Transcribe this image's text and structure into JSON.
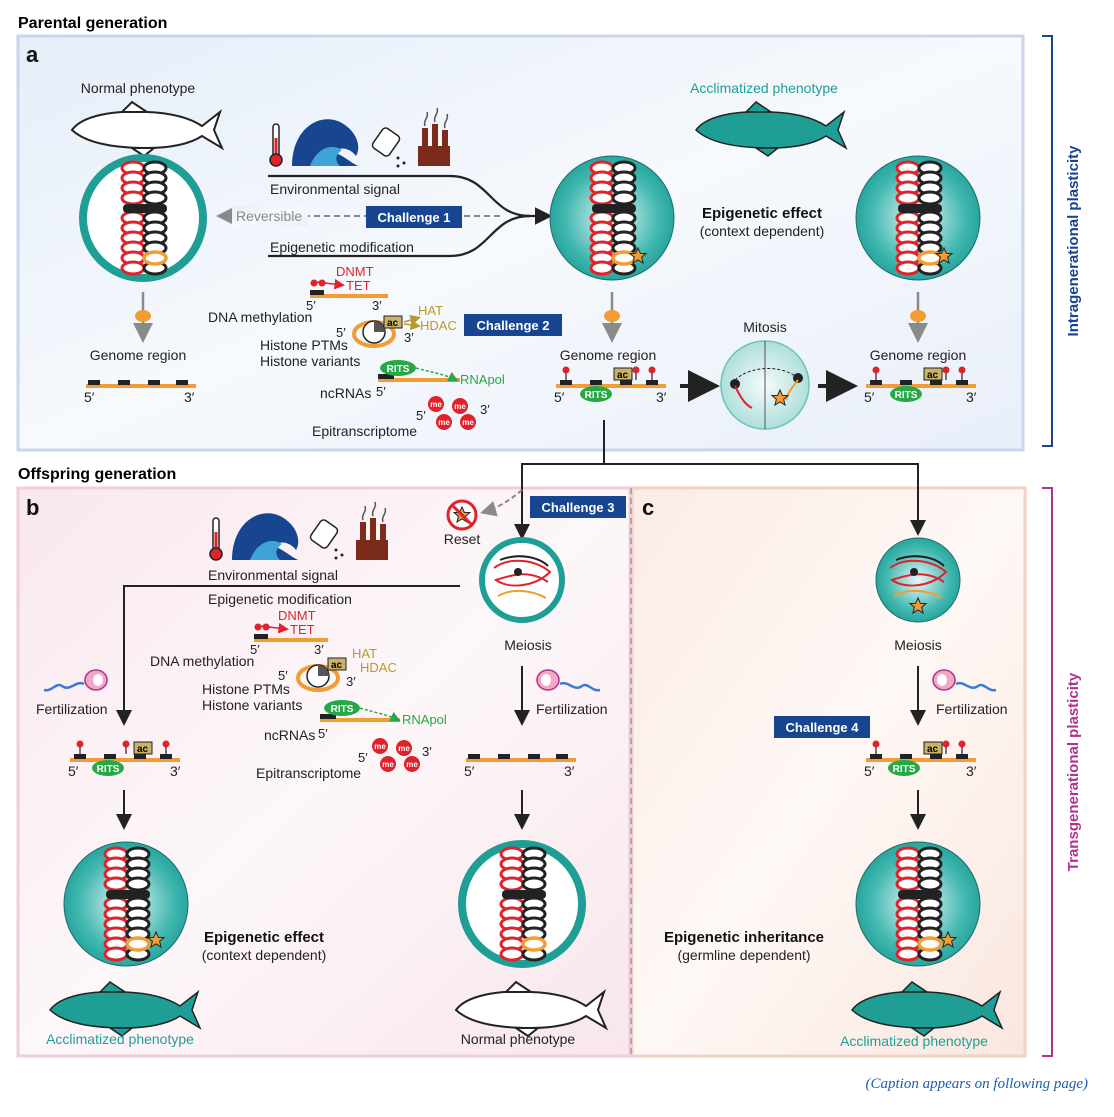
{
  "headings": {
    "parental": "Parental generation",
    "offspring": "Offspring generation"
  },
  "panels": {
    "a": "a",
    "b": "b",
    "c": "c"
  },
  "side_labels": {
    "intra": "Intragenerational plasticity",
    "trans": "Transgenerational plasticity"
  },
  "phenotypes": {
    "normal": "Normal phenotype",
    "acclimatized": "Acclimatized phenotype"
  },
  "labels": {
    "environmental_signal": "Environmental signal",
    "epigenetic_modification": "Epigenetic modification",
    "reversible": "Reversible",
    "genome_region": "Genome region",
    "mitosis": "Mitosis",
    "meiosis": "Meiosis",
    "fertilization": "Fertilization",
    "reset": "Reset",
    "dna_methylation": "DNA methylation",
    "histone_ptms": "Histone PTMs",
    "histone_variants": "Histone variants",
    "ncrnas": "ncRNAs",
    "epitranscriptome": "Epitranscriptome",
    "dnmt": "DNMT",
    "tet": "TET",
    "hat": "HAT",
    "hdac": "HDAC",
    "rnapol": "RNApol",
    "rits": "RITS",
    "ac": "ac",
    "me": "me",
    "five_prime": "5′",
    "three_prime": "3′"
  },
  "effects": {
    "epigenetic_effect": "Epigenetic effect",
    "context_dependent": "(context dependent)",
    "epigenetic_inheritance": "Epigenetic inheritance",
    "germline_dependent": "(germline dependent)"
  },
  "challenges": {
    "c1": "Challenge 1",
    "c2": "Challenge 2",
    "c3": "Challenge 3",
    "c4": "Challenge 4"
  },
  "caption_note": "(Caption appears on following page)",
  "colors": {
    "teal": "#1f9e96",
    "navy": "#17458f",
    "red": "#e0232b",
    "orange": "#f39c34",
    "green": "#27a847",
    "olive": "#b59b2e",
    "magenta": "#b0338e"
  }
}
